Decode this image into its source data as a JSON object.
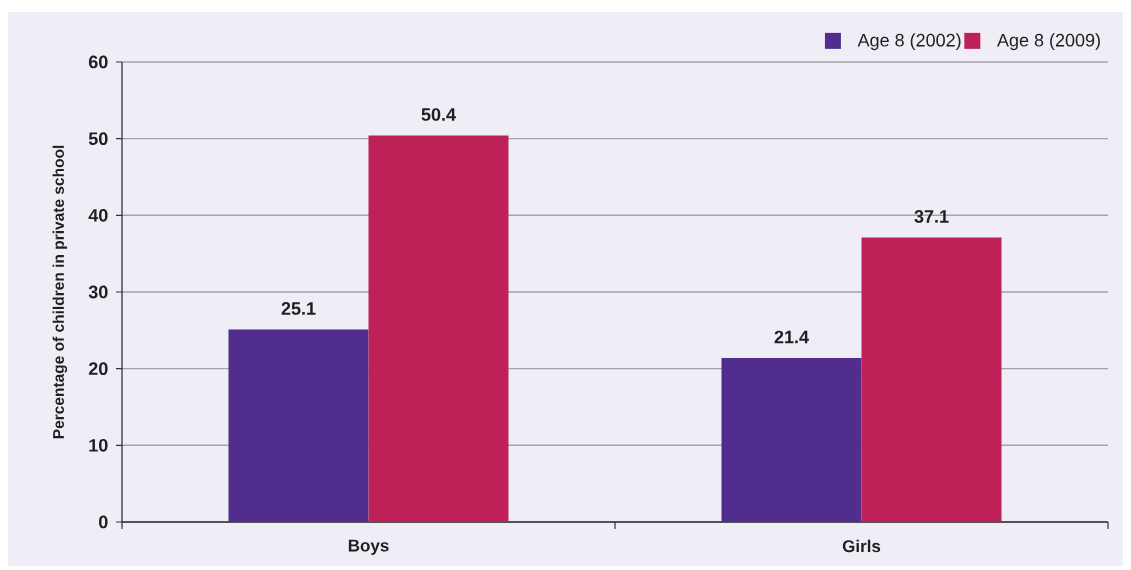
{
  "chart_data": {
    "type": "bar",
    "ylabel": "Percentage of children in private school",
    "categories": [
      "Boys",
      "Girls"
    ],
    "series": [
      {
        "name": "Age 8 (2002)",
        "color": "#512d8e",
        "values": [
          25.1,
          21.4
        ]
      },
      {
        "name": "Age 8 (2009)",
        "color": "#bd2158",
        "values": [
          50.4,
          37.1
        ]
      }
    ],
    "ylim": [
      0,
      60
    ],
    "yticks": [
      0,
      10,
      20,
      30,
      40,
      50,
      60
    ],
    "grid": "y",
    "legend": "top right",
    "data_labels": true
  }
}
